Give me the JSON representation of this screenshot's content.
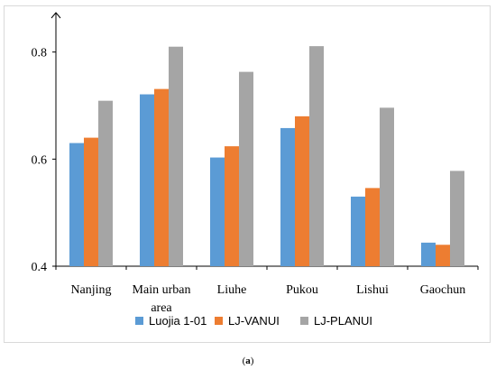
{
  "chart_data": {
    "type": "bar",
    "categories": [
      [
        "Nanjing"
      ],
      [
        "Main urban",
        "area"
      ],
      [
        "Liuhe"
      ],
      [
        "Pukou"
      ],
      [
        "Lishui"
      ],
      [
        "Gaochun"
      ]
    ],
    "series": [
      {
        "name": "Luojia 1-01",
        "color": "#5b9bd5",
        "values": [
          0.63,
          0.721,
          0.603,
          0.658,
          0.53,
          0.444
        ]
      },
      {
        "name": "LJ-VANUI",
        "color": "#ed7d31",
        "values": [
          0.64,
          0.731,
          0.624,
          0.68,
          0.546,
          0.44
        ]
      },
      {
        "name": "LJ-PLANUI",
        "color": "#a5a5a5",
        "values": [
          0.709,
          0.81,
          0.763,
          0.811,
          0.696,
          0.578
        ]
      }
    ],
    "yticks": [
      "0.4",
      "0.6",
      "0.8"
    ],
    "ylim": [
      0.4,
      0.85
    ],
    "legend_position": "bottom",
    "grid": false
  },
  "caption": {
    "paren_open": "(",
    "label": "a",
    "paren_close": ")"
  }
}
